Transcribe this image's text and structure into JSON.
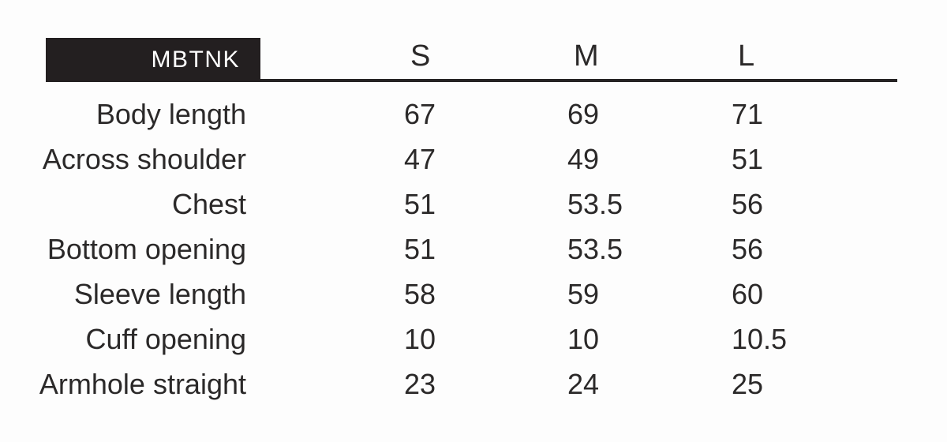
{
  "chart_data": {
    "type": "table",
    "header": {
      "product_code": "MBTNK",
      "columns": [
        "S",
        "M",
        "L"
      ]
    },
    "rows": [
      {
        "label": "Body length",
        "values": [
          "67",
          "69",
          "71"
        ]
      },
      {
        "label": "Across shoulder",
        "values": [
          "47",
          "49",
          "51"
        ]
      },
      {
        "label": "Chest",
        "values": [
          "51",
          "53.5",
          "56"
        ]
      },
      {
        "label": "Bottom opening",
        "values": [
          "51",
          "53.5",
          "56"
        ]
      },
      {
        "label": "Sleeve length",
        "values": [
          "58",
          "59",
          "60"
        ]
      },
      {
        "label": "Cuff opening",
        "values": [
          "10",
          "10",
          "10.5"
        ]
      },
      {
        "label": "Armhole straight",
        "values": [
          "23",
          "24",
          "25"
        ]
      }
    ]
  },
  "colors": {
    "badge_background": "#231f20",
    "badge_text": "#ffffff",
    "text": "#2b2929",
    "divider": "#262324",
    "page_background": "#fdfdfd"
  }
}
